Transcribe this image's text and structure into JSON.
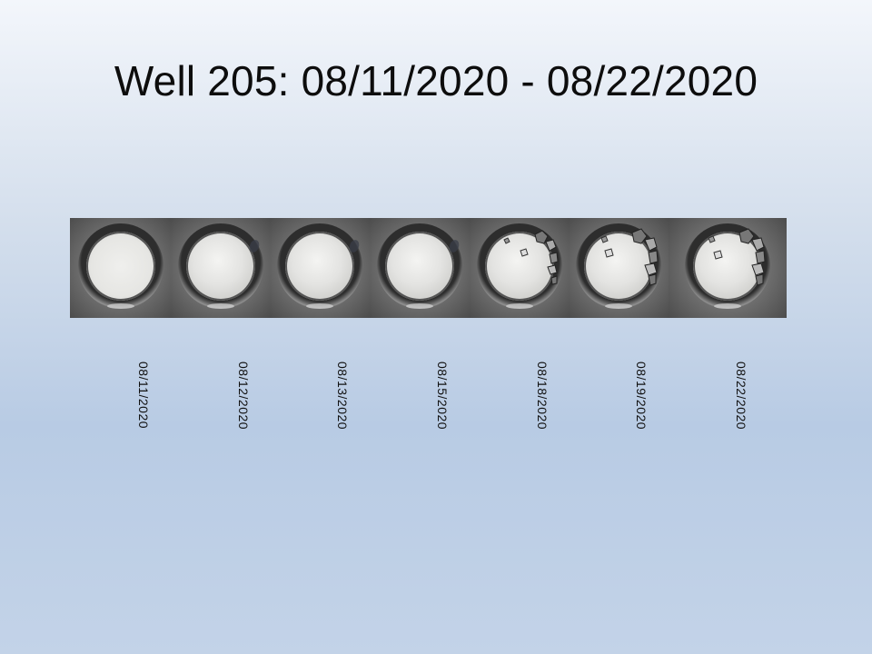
{
  "slide": {
    "title": "Well 205: 08/11/2020 - 08/22/2020"
  },
  "frames": [
    {
      "date": "08/11/2020",
      "crystals": false,
      "shadow": false
    },
    {
      "date": "08/12/2020",
      "crystals": false,
      "shadow": true
    },
    {
      "date": "08/13/2020",
      "crystals": false,
      "shadow": true
    },
    {
      "date": "08/15/2020",
      "crystals": false,
      "shadow": true
    },
    {
      "date": "08/18/2020",
      "crystals": true,
      "shadow": false
    },
    {
      "date": "08/19/2020",
      "crystals": true,
      "shadow": false
    },
    {
      "date": "08/22/2020",
      "crystals": true,
      "shadow": false
    }
  ]
}
